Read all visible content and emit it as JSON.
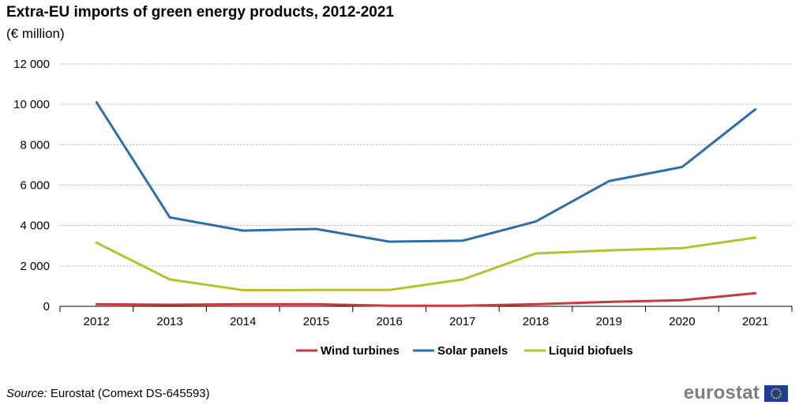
{
  "title": "Extra-EU imports of green energy products, 2012-2021",
  "subtitle": "(€ million)",
  "source": {
    "label": "Source:",
    "text": " Eurostat (Comext DS-645593)"
  },
  "logo": {
    "text": "eurostat",
    "flag_icon": "eu-flag-icon"
  },
  "chart_data": {
    "type": "line",
    "categories": [
      "2012",
      "2013",
      "2014",
      "2015",
      "2016",
      "2017",
      "2018",
      "2019",
      "2020",
      "2021"
    ],
    "ylim": [
      0,
      12000
    ],
    "yticks": [
      0,
      2000,
      4000,
      6000,
      8000,
      10000,
      12000
    ],
    "ytick_labels": [
      "0",
      "2 000",
      "4 000",
      "6 000",
      "8 000",
      "10 000",
      "12 000"
    ],
    "grid": true,
    "legend_position": "bottom",
    "series": [
      {
        "name": "Wind turbines",
        "color": "#c8393c",
        "values": [
          100,
          80,
          100,
          100,
          30,
          30,
          100,
          220,
          300,
          650
        ]
      },
      {
        "name": "Solar panels",
        "color": "#2e6da8",
        "values": [
          10100,
          4400,
          3750,
          3830,
          3200,
          3250,
          4200,
          6200,
          6900,
          9750
        ]
      },
      {
        "name": "Liquid biofuels",
        "color": "#b5c22e",
        "values": [
          3150,
          1330,
          800,
          810,
          810,
          1330,
          2620,
          2770,
          2880,
          3400
        ]
      }
    ]
  }
}
